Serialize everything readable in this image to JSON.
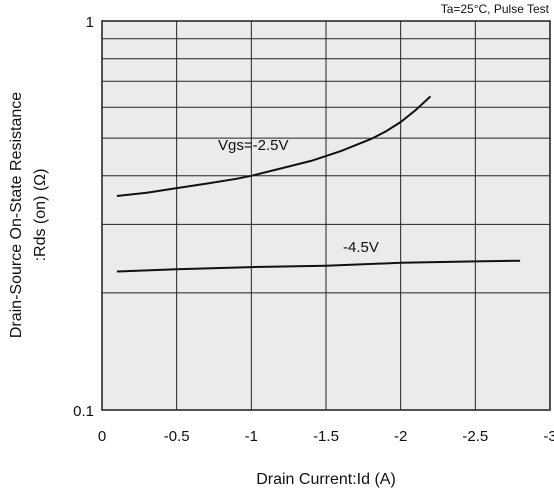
{
  "chart_data": {
    "type": "line",
    "title": "",
    "annotation": "Ta=25°C, Pulse Test",
    "xlabel": "Drain Current:Id  (A)",
    "ylabel_line1": "Drain-Source On-State Resistance",
    "ylabel_line2": ":Rds (on) (Ω)",
    "xlim": [
      0,
      -3
    ],
    "ylim": [
      0.1,
      1
    ],
    "y_scale": "log",
    "grid": true,
    "x_ticks": [
      {
        "value": 0,
        "label": "0"
      },
      {
        "value": -0.5,
        "label": "-0.5"
      },
      {
        "value": -1,
        "label": "-1"
      },
      {
        "value": -1.5,
        "label": "-1.5"
      },
      {
        "value": -2,
        "label": "-2"
      },
      {
        "value": -2.5,
        "label": "-2.5"
      },
      {
        "value": -3,
        "label": "-3"
      }
    ],
    "y_ticks": [
      {
        "value": 0.1,
        "label": "0.1"
      },
      {
        "value": 1,
        "label": "1"
      }
    ],
    "y_gridlines": [
      0.1,
      0.2,
      0.3,
      0.4,
      0.5,
      0.6,
      0.7,
      0.8,
      0.9,
      1
    ],
    "series": [
      {
        "name": "Vgs=-2.5V",
        "x": [
          -0.1,
          -0.3,
          -0.5,
          -0.7,
          -0.9,
          -1.0,
          -1.2,
          -1.4,
          -1.6,
          -1.8,
          -1.9,
          -2.0,
          -2.1,
          -2.2
        ],
        "y": [
          0.355,
          0.362,
          0.372,
          0.382,
          0.393,
          0.4,
          0.418,
          0.437,
          0.463,
          0.497,
          0.52,
          0.55,
          0.59,
          0.64
        ]
      },
      {
        "name": "-4.5V",
        "x": [
          -0.1,
          -0.5,
          -1.0,
          -1.5,
          -2.0,
          -2.5,
          -2.8
        ],
        "y": [
          0.227,
          0.23,
          0.233,
          0.235,
          0.239,
          0.241,
          0.242
        ]
      }
    ]
  }
}
